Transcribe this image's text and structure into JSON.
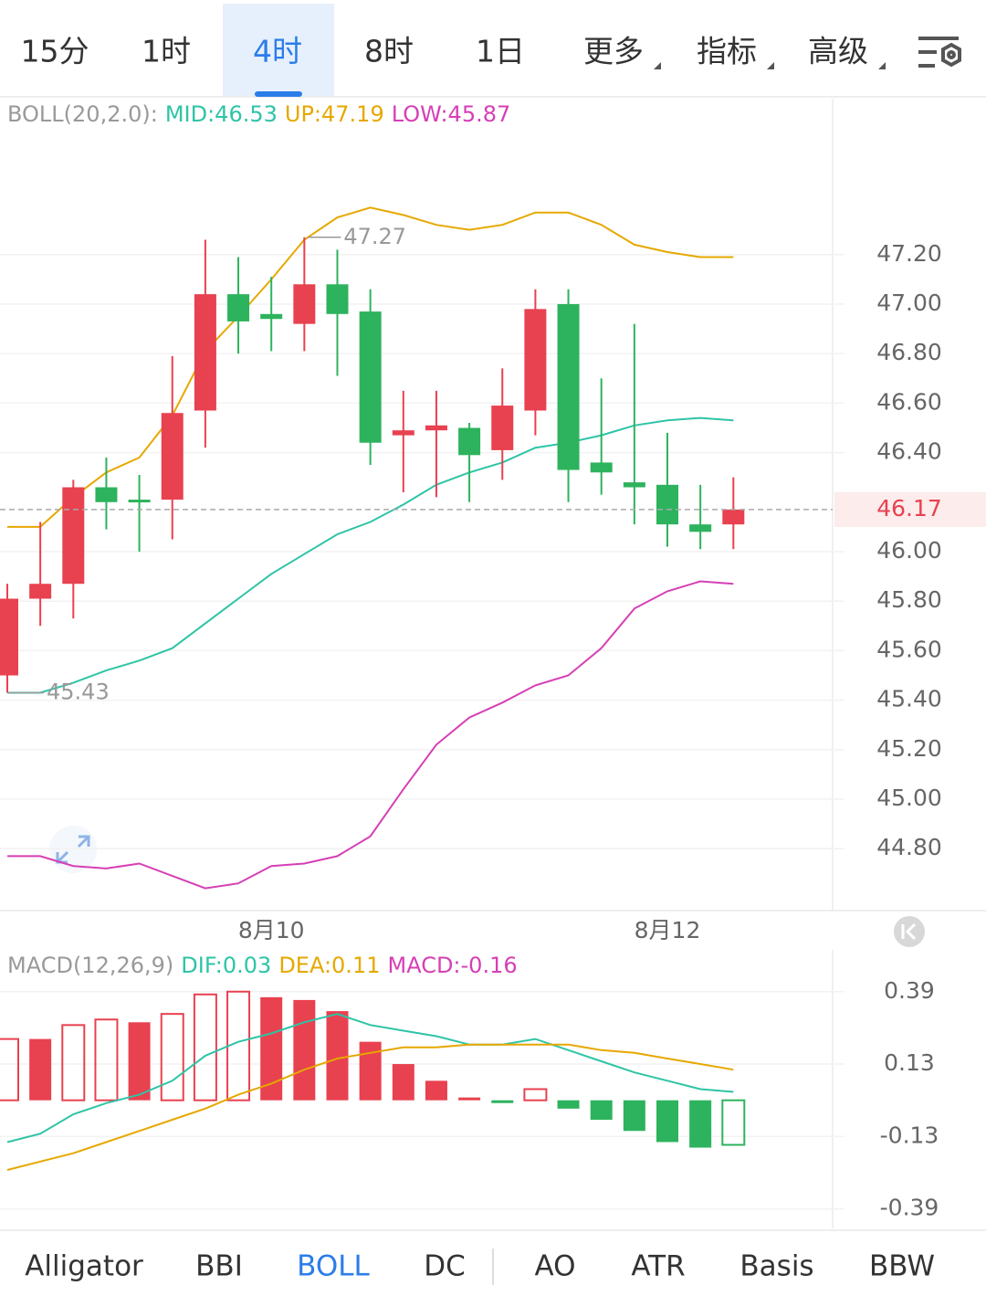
{
  "tabs": [
    "15分",
    "1时",
    "4时",
    "8时",
    "1日",
    "更多",
    "指标",
    "高级"
  ],
  "selected_tab": 2,
  "indicator_tabs": [
    "Alligator",
    "BBI",
    "BOLL",
    "DC",
    "AO",
    "ATR",
    "Basis",
    "BBW"
  ],
  "selected_indicator_tab": 2,
  "chart_data": [
    {
      "type": "candlestick",
      "indicator": "BOLL(20,2.0):",
      "categories": [
        null,
        null,
        null,
        null,
        null,
        null,
        null,
        null,
        "8月10",
        null,
        null,
        null,
        null,
        null,
        null,
        null,
        null,
        null,
        null,
        null,
        "8月12",
        null,
        null
      ],
      "open": [
        45.5,
        45.81,
        45.87,
        46.26,
        46.21,
        46.21,
        46.57,
        47.04,
        46.96,
        46.92,
        47.08,
        46.97,
        46.47,
        46.49,
        46.5,
        46.41,
        46.57,
        47.0,
        46.36,
        46.28,
        46.27,
        46.11,
        46.11
      ],
      "high": [
        45.87,
        46.12,
        46.29,
        46.38,
        46.31,
        46.79,
        47.26,
        47.19,
        47.11,
        47.27,
        47.22,
        47.06,
        46.65,
        46.65,
        46.52,
        46.74,
        47.06,
        47.06,
        46.7,
        46.92,
        46.48,
        46.27,
        46.3
      ],
      "low": [
        45.43,
        45.7,
        45.73,
        46.09,
        46.0,
        46.05,
        46.42,
        46.8,
        46.81,
        46.81,
        46.71,
        46.35,
        46.24,
        46.22,
        46.2,
        46.29,
        46.47,
        46.2,
        46.23,
        46.11,
        46.02,
        46.01,
        46.01
      ],
      "close": [
        45.81,
        45.87,
        46.26,
        46.2,
        46.2,
        46.56,
        47.04,
        46.93,
        46.94,
        47.08,
        46.96,
        46.44,
        46.49,
        46.51,
        46.39,
        46.59,
        46.98,
        46.33,
        46.32,
        46.26,
        46.11,
        46.08,
        46.17
      ],
      "up_color": "#e8414f",
      "down_color": "#2db35d",
      "series": [
        {
          "name": "MID:46.53",
          "color": "#2ec4a6",
          "values": [
            45.43,
            45.43,
            45.47,
            45.52,
            45.56,
            45.61,
            45.71,
            45.81,
            45.91,
            45.99,
            46.07,
            46.12,
            46.19,
            46.27,
            46.32,
            46.36,
            46.42,
            46.44,
            46.47,
            46.51,
            46.53,
            46.54,
            46.53
          ]
        },
        {
          "name": "UP:47.19",
          "color": "#e6a800",
          "values": [
            46.1,
            46.1,
            46.22,
            46.32,
            46.38,
            46.55,
            46.81,
            46.95,
            47.1,
            47.26,
            47.35,
            47.39,
            47.36,
            47.32,
            47.3,
            47.32,
            47.37,
            47.37,
            47.32,
            47.24,
            47.21,
            47.19,
            47.19
          ]
        },
        {
          "name": "LOW:45.87",
          "color": "#d63fb5",
          "values": [
            44.77,
            44.77,
            44.73,
            44.72,
            44.74,
            44.69,
            44.64,
            44.66,
            44.73,
            44.74,
            44.77,
            44.85,
            45.04,
            45.22,
            45.33,
            45.39,
            45.46,
            45.5,
            45.61,
            45.77,
            45.84,
            45.88,
            45.87
          ]
        }
      ],
      "max_label": 47.27,
      "max_index": 9,
      "min_label": 45.43,
      "min_index": 0,
      "last_price": 46.17,
      "ylim": [
        44.55,
        47.83
      ],
      "yticks": [
        {
          "value": 44.8,
          "label": "44.80"
        },
        {
          "value": 45.0,
          "label": "45.00"
        },
        {
          "value": 45.2,
          "label": "45.20"
        },
        {
          "value": 45.4,
          "label": "45.40"
        },
        {
          "value": 45.6,
          "label": "45.60"
        },
        {
          "value": 45.8,
          "label": "45.80"
        },
        {
          "value": 46.0,
          "label": "46.00"
        },
        {
          "value": 46.4,
          "label": "46.40"
        },
        {
          "value": 46.6,
          "label": "46.60"
        },
        {
          "value": 46.8,
          "label": "46.80"
        },
        {
          "value": 47.0,
          "label": "47.00"
        },
        {
          "value": 47.2,
          "label": "47.20"
        }
      ],
      "grid": true
    },
    {
      "type": "macd",
      "indicator": "MACD(12,26,9)",
      "series": [
        {
          "name": "DIF:0.03",
          "color": "#2ec4a6",
          "values": [
            -0.15,
            -0.12,
            -0.05,
            -0.01,
            0.02,
            0.07,
            0.16,
            0.21,
            0.24,
            0.28,
            0.31,
            0.27,
            0.25,
            0.23,
            0.2,
            0.2,
            0.22,
            0.18,
            0.14,
            0.1,
            0.07,
            0.04,
            0.03
          ]
        },
        {
          "name": "DEA:0.11",
          "color": "#e6a800",
          "values": [
            -0.25,
            -0.22,
            -0.19,
            -0.15,
            -0.11,
            -0.07,
            -0.03,
            0.02,
            0.06,
            0.11,
            0.15,
            0.17,
            0.19,
            0.19,
            0.2,
            0.2,
            0.2,
            0.2,
            0.18,
            0.17,
            0.15,
            0.13,
            0.11
          ]
        }
      ],
      "histogram": {
        "name": "MACD:-0.16",
        "color": "#d63fb5",
        "up_color": "#e8414f",
        "down_color": "#2db35d",
        "values": [
          0.22,
          0.22,
          0.27,
          0.29,
          0.28,
          0.31,
          0.38,
          0.39,
          0.37,
          0.36,
          0.32,
          0.21,
          0.13,
          0.07,
          0.01,
          -0.01,
          0.04,
          -0.03,
          -0.07,
          -0.11,
          -0.15,
          -0.17,
          -0.16
        ]
      },
      "ylim": [
        -0.46,
        0.54
      ],
      "yticks": [
        -0.39,
        -0.13,
        0.13,
        0.39
      ],
      "grid": true
    }
  ]
}
